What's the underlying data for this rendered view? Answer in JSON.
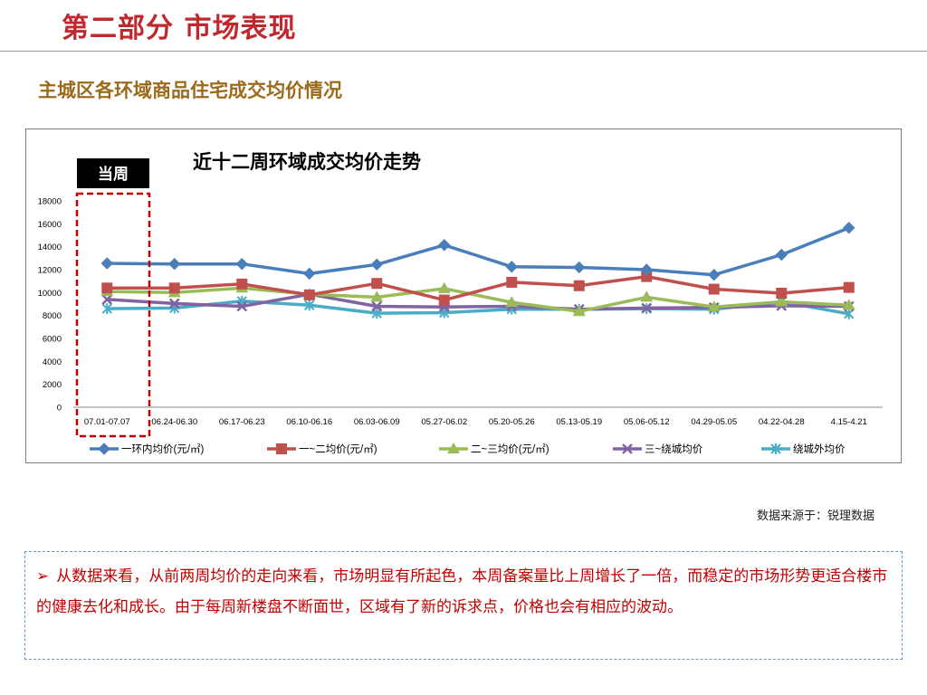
{
  "header": {
    "title": "第二部分 市场表现"
  },
  "section": {
    "title": "主城区各环域商品住宅成交均价情况"
  },
  "source_note": "数据来源于：锐理数据",
  "note": {
    "bullet": "➢",
    "text": "从数据来看，从前两周均价的走向来看，市场明显有所起色，本周备案量比上周增长了一倍，而稳定的市场形势更适合楼市的健康去化和成长。由于每周新楼盘不断面世，区域有了新的诉求点，价格也会有相应的波动。"
  },
  "colors": {
    "header": "#c0282d",
    "section_title": "#9b6a1a",
    "note_text": "#c00000",
    "note_border": "#5b9bd5",
    "highlight": "#c00000"
  },
  "chart_data": {
    "type": "line",
    "title": "近十二周环域成交均价走势",
    "highlight_label": "当周",
    "categories": [
      "07.01-07.07",
      "06.24-06.30",
      "06.17-06.23",
      "06.10-06.16",
      "06.03-06.09",
      "05.27-06.02",
      "05.20-05.26",
      "05.13-05.19",
      "05.06-05.12",
      "04.29-05.05",
      "04.22-04.28",
      "4.15-4.21"
    ],
    "ylim": [
      0,
      18000
    ],
    "yticks": [
      "0",
      "2000",
      "4000",
      "6000",
      "8000",
      "10000",
      "12000",
      "14000",
      "16000",
      "18000"
    ],
    "legend_position": "bottom",
    "series": [
      {
        "name": "一环内均价(元/㎡)",
        "color": "#4a7ebb",
        "marker": "diamond",
        "values": [
          12550,
          12500,
          12500,
          11650,
          12450,
          14150,
          12250,
          12200,
          12000,
          11550,
          13300,
          15650
        ]
      },
      {
        "name": "一~二均价(元/㎡)",
        "color": "#c0504d",
        "marker": "square",
        "values": [
          10400,
          10400,
          10750,
          9800,
          10800,
          9350,
          10900,
          10600,
          11400,
          10300,
          9950,
          10450
        ]
      },
      {
        "name": "二~三均价(元/㎡)",
        "color": "#9bbb59",
        "marker": "triangle",
        "values": [
          10100,
          10000,
          10400,
          9850,
          9600,
          10350,
          9150,
          8350,
          9600,
          8750,
          9200,
          8900
        ]
      },
      {
        "name": "三~绕城均价",
        "color": "#8064a2",
        "marker": "x",
        "values": [
          9400,
          9050,
          8800,
          9850,
          8800,
          8750,
          8800,
          8550,
          8650,
          8700,
          8850,
          8800
        ]
      },
      {
        "name": "绕城外均价",
        "color": "#4bacc6",
        "marker": "star",
        "values": [
          8600,
          8650,
          9250,
          8900,
          8200,
          8250,
          8550,
          8550,
          8600,
          8550,
          9200,
          8150
        ]
      }
    ]
  }
}
